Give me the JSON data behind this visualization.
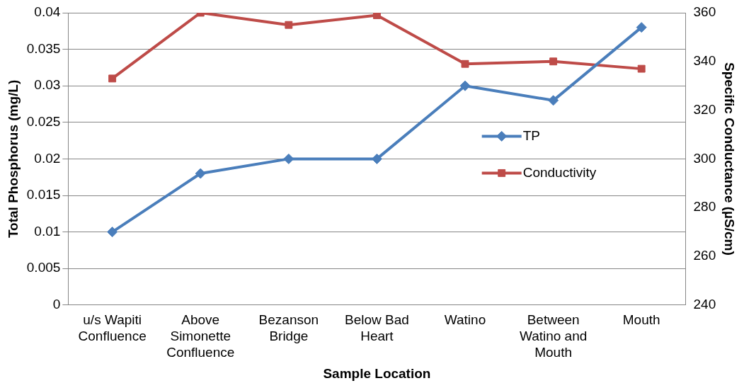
{
  "chart_data": {
    "type": "line",
    "xlabel": "Sample Location",
    "ylabel": "Total Phosphorus (mg/L)",
    "y2label": "Specific Conductance (µS/cm)",
    "categories": [
      "u/s Wapiti Confluence",
      "Above Simonette Confluence",
      "Bezanson Bridge",
      "Below Bad Heart",
      "Watino",
      "Between Watino and Mouth",
      "Mouth"
    ],
    "series": [
      {
        "name": "TP",
        "color": "#4a7ebb",
        "marker": "diamond",
        "values": [
          0.01,
          0.018,
          0.02,
          0.02,
          0.03,
          0.028,
          0.038
        ]
      },
      {
        "name": "Conductivity",
        "color": "#be4b48",
        "marker": "square",
        "axis": "y2",
        "values": [
          333,
          360,
          355,
          359,
          339,
          340,
          337
        ]
      }
    ],
    "ylim": [
      0,
      0.04
    ],
    "yticks": [
      0,
      0.005,
      0.01,
      0.015,
      0.02,
      0.025,
      0.03,
      0.035,
      0.04
    ],
    "y2lim": [
      240,
      360
    ],
    "y2ticks": [
      240,
      260,
      280,
      300,
      320,
      340,
      360
    ],
    "grid": "y",
    "legend": "right"
  }
}
